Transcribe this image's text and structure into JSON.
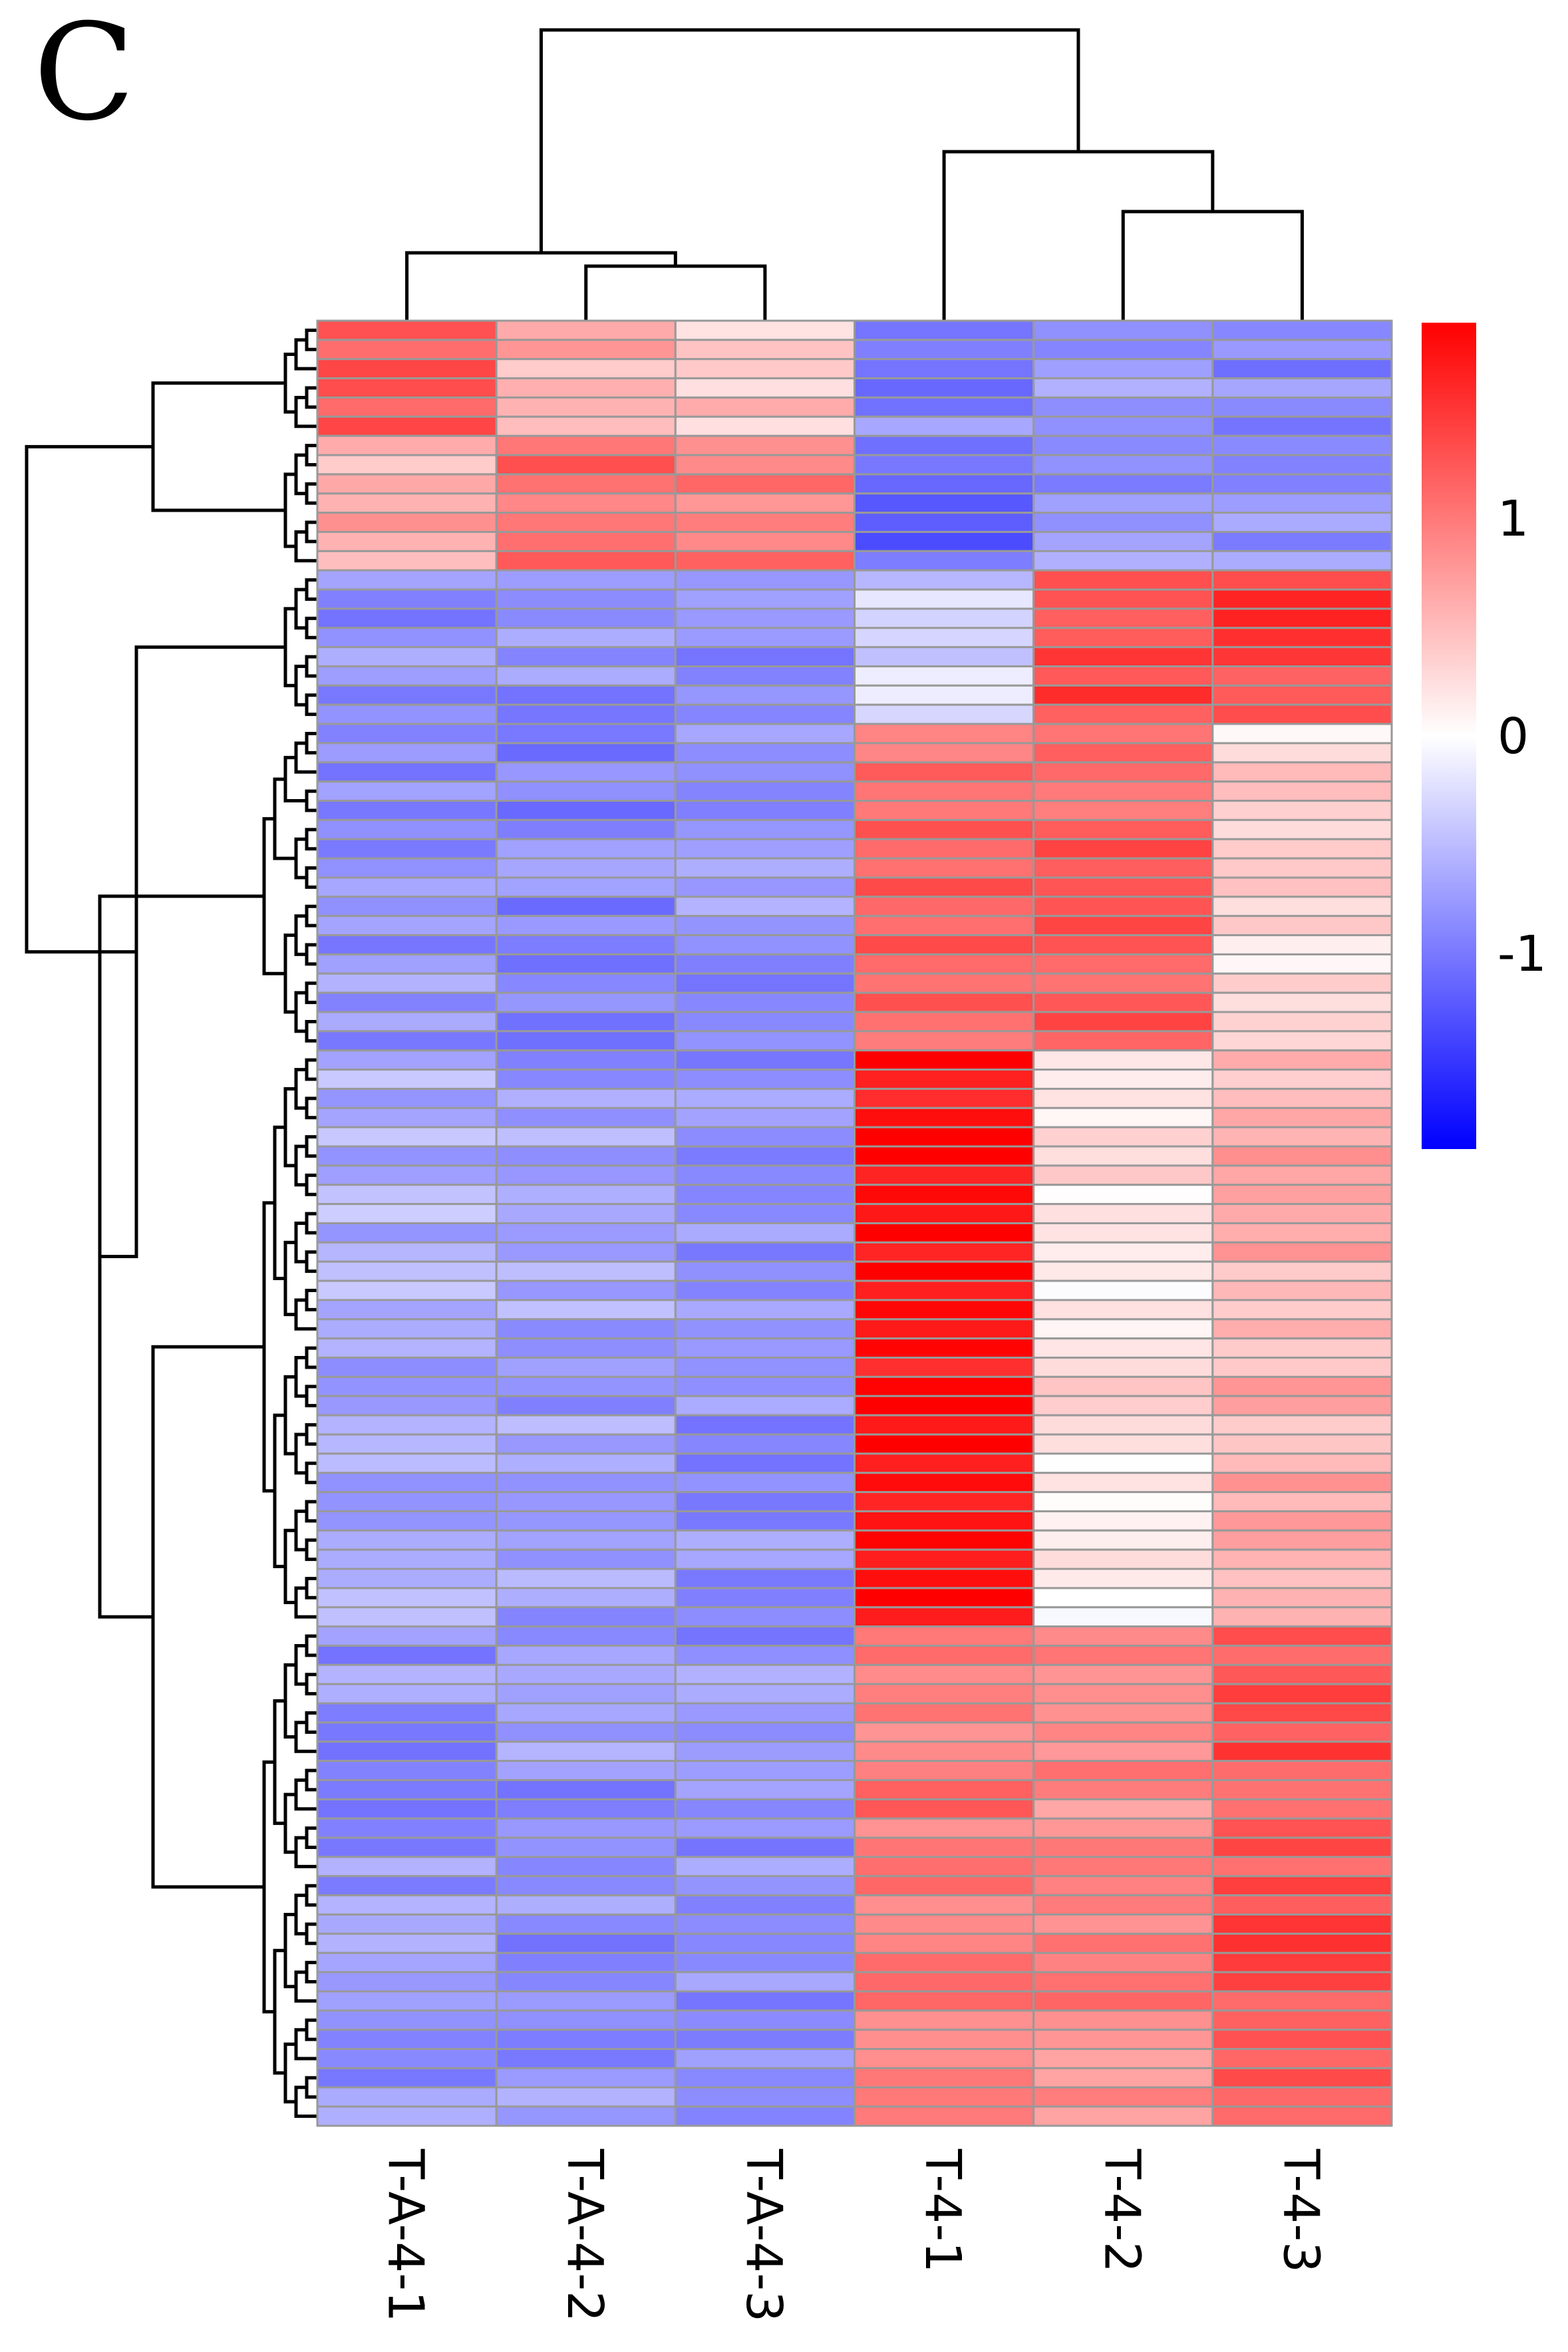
{
  "panel_label": "C",
  "colors": {
    "high": "#ff0000",
    "mid": "#ffffff",
    "low": "#0000ff",
    "grid": "#999999",
    "tree": "#000000"
  },
  "chart_data": {
    "type": "heatmap",
    "title": "",
    "columns": [
      "T-A-4-1",
      "T-A-4-2",
      "T-A-4-3",
      "T-4-1",
      "T-4-2",
      "T-4-3"
    ],
    "row_count": 94,
    "value_range": [
      -1.9,
      1.9
    ],
    "color_scale": {
      "ticks": [
        1,
        0,
        -1
      ],
      "tick_labels": [
        "1",
        "0",
        "-1"
      ],
      "low": "#0000ff",
      "mid": "#ffffff",
      "high": "#ff0000"
    },
    "column_dendrogram": "((T-A-4-1,(T-A-4-2,T-A-4-3)),(T-4-1,(T-4-2,T-4-3)))",
    "row_clusters": [
      {
        "rows": "1-6",
        "T-A-4-1": 1.3,
        "T-A-4-2": 0.6,
        "T-A-4-3": 0.4,
        "T-4-1": -0.9,
        "T-4-2": -0.8,
        "T-4-3": -0.9
      },
      {
        "rows": "7-13",
        "T-A-4-1": 0.6,
        "T-A-4-2": 1.1,
        "T-A-4-3": 1.0,
        "T-4-1": -1.2,
        "T-4-2": -0.8,
        "T-4-3": -0.8
      },
      {
        "rows": "14-21",
        "T-A-4-1": -0.8,
        "T-A-4-2": -0.8,
        "T-A-4-3": -0.8,
        "T-4-1": -0.3,
        "T-4-2": 1.4,
        "T-4-3": 1.4
      },
      {
        "rows": "22-38",
        "T-A-4-1": -0.8,
        "T-A-4-2": -0.9,
        "T-A-4-3": -0.8,
        "T-4-1": 1.1,
        "T-4-2": 1.2,
        "T-4-3": 0.3
      },
      {
        "rows": "39-68",
        "T-A-4-1": -0.6,
        "T-A-4-2": -0.7,
        "T-A-4-3": -0.8,
        "T-4-1": 1.8,
        "T-4-2": 0.2,
        "T-4-3": 0.6
      },
      {
        "rows": "69-94",
        "T-A-4-1": -0.8,
        "T-A-4-2": -0.8,
        "T-A-4-3": -0.8,
        "T-4-1": 1.0,
        "T-4-2": 0.9,
        "T-4-3": 1.3
      }
    ]
  }
}
